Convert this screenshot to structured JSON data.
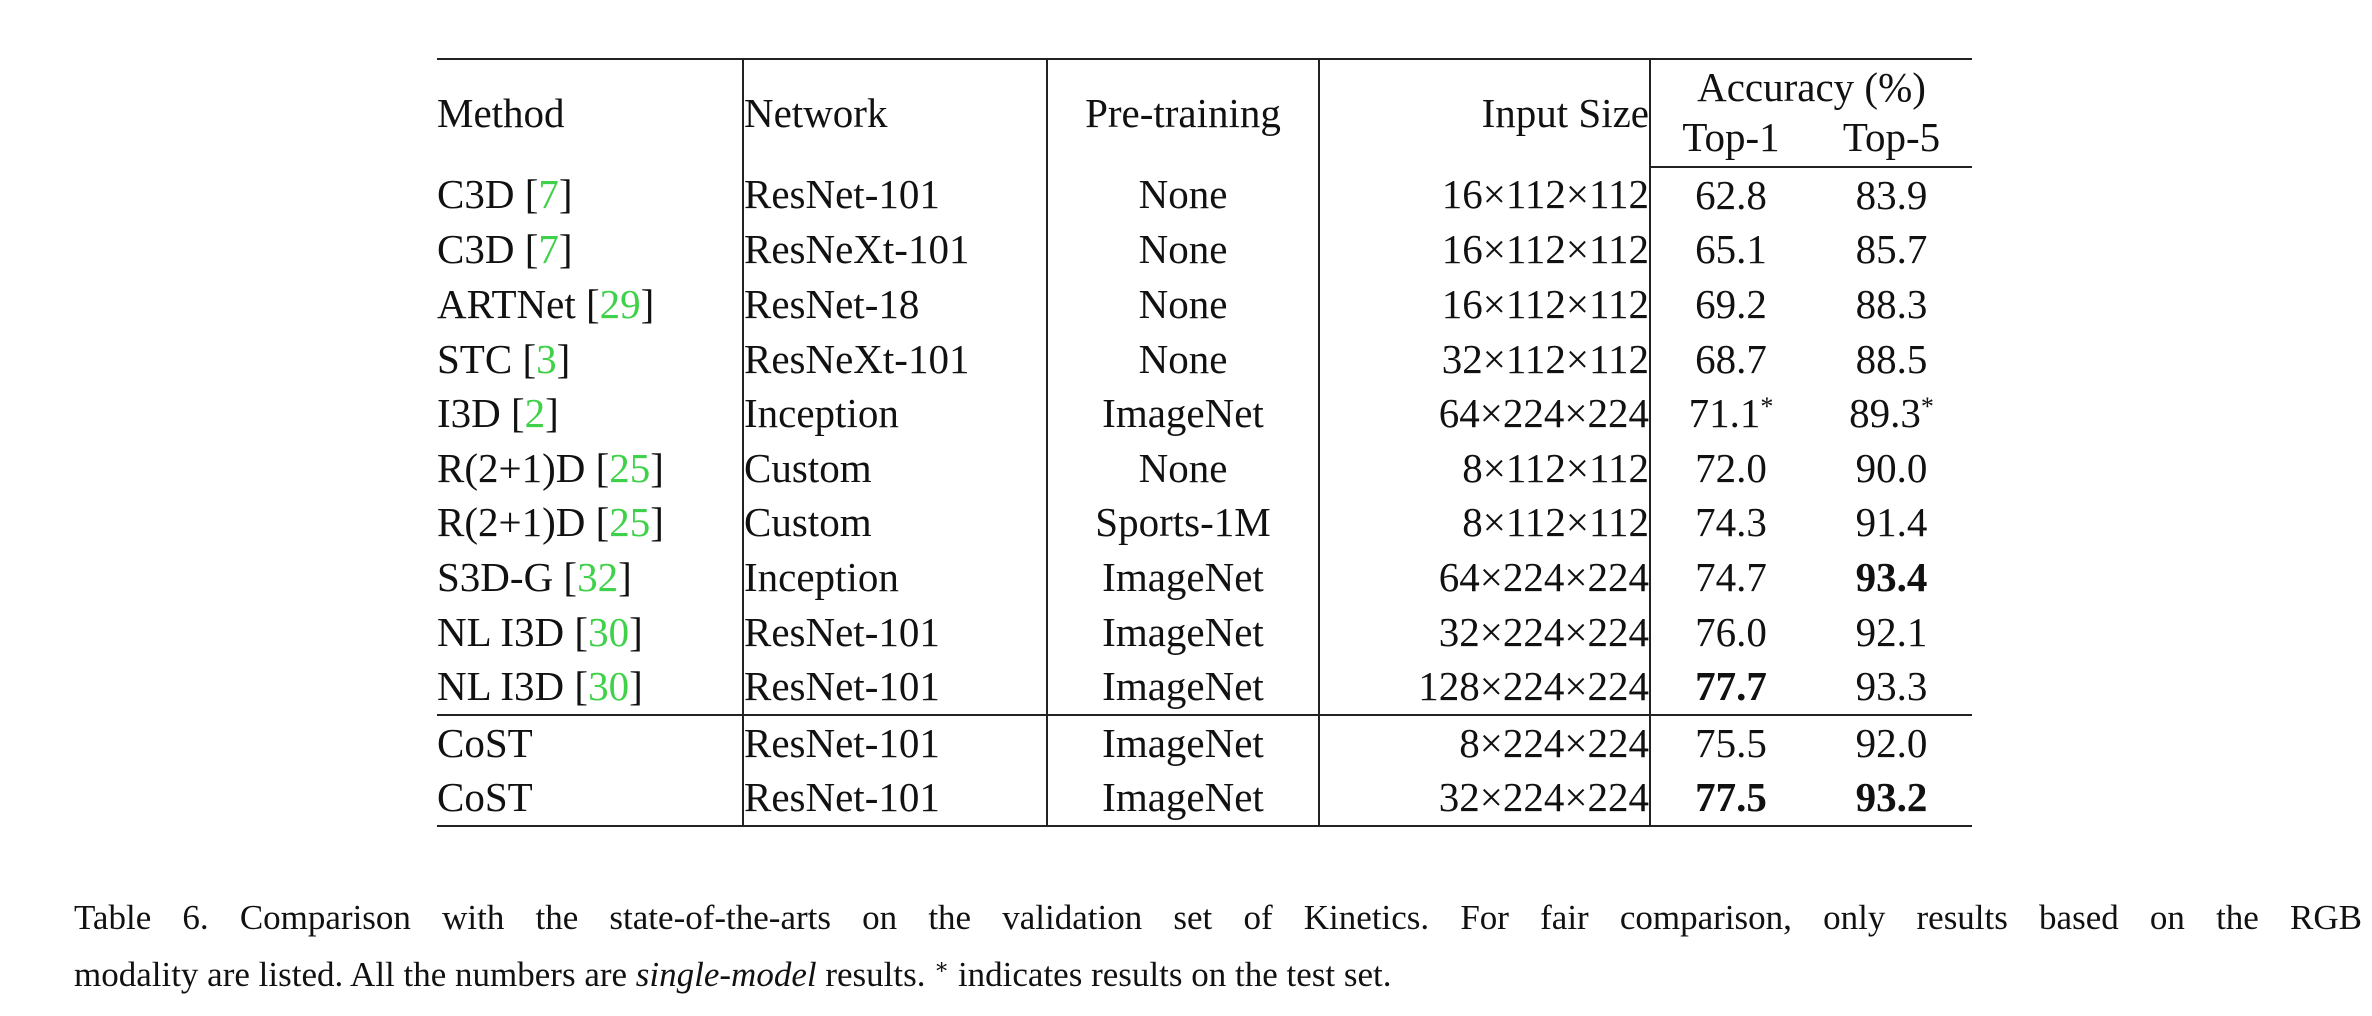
{
  "table": {
    "headers": {
      "method": "Method",
      "network": "Network",
      "pretraining": "Pre-training",
      "input_size": "Input Size",
      "accuracy": "Accuracy (%)",
      "top1": "Top-1",
      "top5": "Top-5"
    },
    "rows": [
      {
        "method": "C3D [",
        "ref": "7",
        "close": "]",
        "network": "ResNet-101",
        "pretraining": "None",
        "input_size": "16×112×112",
        "top1": "62.8",
        "top5": "83.9"
      },
      {
        "method": "C3D [",
        "ref": "7",
        "close": "]",
        "network": "ResNeXt-101",
        "pretraining": "None",
        "input_size": "16×112×112",
        "top1": "65.1",
        "top5": "85.7"
      },
      {
        "method": "ARTNet [",
        "ref": "29",
        "close": "]",
        "network": "ResNet-18",
        "pretraining": "None",
        "input_size": "16×112×112",
        "top1": "69.2",
        "top5": "88.3"
      },
      {
        "method": "STC [",
        "ref": "3",
        "close": "]",
        "network": "ResNeXt-101",
        "pretraining": "None",
        "input_size": "32×112×112",
        "top1": "68.7",
        "top5": "88.5"
      },
      {
        "method": "I3D [",
        "ref": "2",
        "close": "]",
        "network": "Inception",
        "pretraining": "ImageNet",
        "input_size": "64×224×224",
        "top1": "71.1",
        "top5": "89.3",
        "star": "*"
      },
      {
        "method": "R(2+1)D [",
        "ref": "25",
        "close": "]",
        "network": "Custom",
        "pretraining": "None",
        "input_size": "8×112×112",
        "top1": "72.0",
        "top5": "90.0"
      },
      {
        "method": "R(2+1)D [",
        "ref": "25",
        "close": "]",
        "network": "Custom",
        "pretraining": "Sports-1M",
        "input_size": "8×112×112",
        "top1": "74.3",
        "top5": "91.4"
      },
      {
        "method": "S3D-G [",
        "ref": "32",
        "close": "]",
        "network": "Inception",
        "pretraining": "ImageNet",
        "input_size": "64×224×224",
        "top1": "74.7",
        "top5": "93.4"
      },
      {
        "method": "NL I3D [",
        "ref": "30",
        "close": "]",
        "network": "ResNet-101",
        "pretraining": "ImageNet",
        "input_size": "32×224×224",
        "top1": "76.0",
        "top5": "92.1"
      },
      {
        "method": "NL I3D [",
        "ref": "30",
        "close": "]",
        "network": "ResNet-101",
        "pretraining": "ImageNet",
        "input_size": "128×224×224",
        "top1": "77.7",
        "top5": "93.3"
      },
      {
        "method": "CoST",
        "network": "ResNet-101",
        "pretraining": "ImageNet",
        "input_size": "8×224×224",
        "top1": "75.5",
        "top5": "92.0"
      },
      {
        "method": "CoST",
        "network": "ResNet-101",
        "pretraining": "ImageNet",
        "input_size": "32×224×224",
        "top1": "77.5",
        "top5": "93.2"
      }
    ]
  },
  "caption": {
    "line1": "Table 6. Comparison with the state-of-the-arts on the validation set of Kinetics.  For fair comparison, only results based on the RGB",
    "line2_a": "modality are listed. All the numbers are ",
    "line2_em": "single-model",
    "line2_b": " results. ",
    "line2_star": "∗",
    "line2_c": " indicates results on the test set."
  }
}
